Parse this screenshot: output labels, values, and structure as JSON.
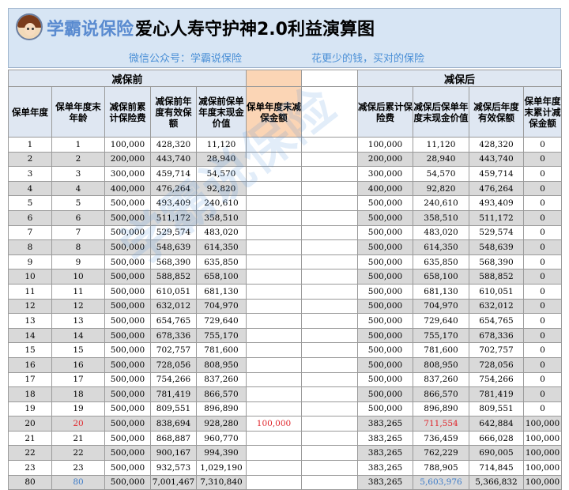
{
  "header": {
    "brand": "学霸说保险",
    "title": "爱心人寿守护神2.0利益演算图",
    "wechat": "微信公众号：学霸说保险",
    "slogan": "花更少的钱，买对的保险"
  },
  "table": {
    "group_before": "减保前",
    "group_after": "减保后",
    "columns": [
      "保单年度",
      "保单年度末年龄",
      "减保前累计保险费",
      "减保前年度有效保额",
      "减保前保单年度末现金价值",
      "保单年度末减保金额",
      "减保后累计保险费",
      "减保后保单年度末现金价值",
      "减保后年度有效保额",
      "保单年度末累计减保金额"
    ],
    "rows": [
      [
        "1",
        "1",
        "100,000",
        "428,320",
        "11,120",
        "",
        "100,000",
        "11,120",
        "428,320",
        "0"
      ],
      [
        "2",
        "2",
        "200,000",
        "443,740",
        "28,940",
        "",
        "200,000",
        "28,940",
        "443,740",
        "0"
      ],
      [
        "3",
        "3",
        "300,000",
        "459,714",
        "54,570",
        "",
        "300,000",
        "54,570",
        "459,714",
        "0"
      ],
      [
        "4",
        "4",
        "400,000",
        "476,264",
        "92,820",
        "",
        "400,000",
        "92,820",
        "476,264",
        "0"
      ],
      [
        "5",
        "5",
        "500,000",
        "493,409",
        "240,610",
        "",
        "500,000",
        "240,610",
        "493,409",
        "0"
      ],
      [
        "6",
        "6",
        "500,000",
        "511,172",
        "358,510",
        "",
        "500,000",
        "358,510",
        "511,172",
        "0"
      ],
      [
        "7",
        "7",
        "500,000",
        "529,574",
        "483,020",
        "",
        "500,000",
        "483,020",
        "529,574",
        "0"
      ],
      [
        "8",
        "8",
        "500,000",
        "548,639",
        "614,350",
        "",
        "500,000",
        "614,350",
        "548,639",
        "0"
      ],
      [
        "9",
        "9",
        "500,000",
        "568,390",
        "635,850",
        "",
        "500,000",
        "635,850",
        "568,390",
        "0"
      ],
      [
        "10",
        "10",
        "500,000",
        "588,852",
        "658,100",
        "",
        "500,000",
        "658,100",
        "588,852",
        "0"
      ],
      [
        "11",
        "11",
        "500,000",
        "610,051",
        "681,130",
        "",
        "500,000",
        "681,130",
        "610,051",
        "0"
      ],
      [
        "12",
        "12",
        "500,000",
        "632,012",
        "704,970",
        "",
        "500,000",
        "704,970",
        "632,012",
        "0"
      ],
      [
        "13",
        "13",
        "500,000",
        "654,765",
        "729,640",
        "",
        "500,000",
        "729,640",
        "654,765",
        "0"
      ],
      [
        "14",
        "14",
        "500,000",
        "678,336",
        "755,170",
        "",
        "500,000",
        "755,170",
        "678,336",
        "0"
      ],
      [
        "15",
        "15",
        "500,000",
        "702,757",
        "781,600",
        "",
        "500,000",
        "781,600",
        "702,757",
        "0"
      ],
      [
        "16",
        "16",
        "500,000",
        "728,056",
        "808,950",
        "",
        "500,000",
        "808,950",
        "728,056",
        "0"
      ],
      [
        "17",
        "17",
        "500,000",
        "754,266",
        "837,260",
        "",
        "500,000",
        "837,260",
        "754,266",
        "0"
      ],
      [
        "18",
        "18",
        "500,000",
        "781,419",
        "866,570",
        "",
        "500,000",
        "866,570",
        "781,419",
        "0"
      ],
      [
        "19",
        "19",
        "500,000",
        "809,551",
        "896,890",
        "",
        "500,000",
        "896,890",
        "809,551",
        "0"
      ],
      [
        "20",
        "20",
        "500,000",
        "838,694",
        "928,280",
        "100,000",
        "383,265",
        "711,554",
        "642,884",
        "100,000"
      ],
      [
        "21",
        "21",
        "500,000",
        "868,887",
        "960,770",
        "",
        "383,265",
        "736,459",
        "666,028",
        "100,000"
      ],
      [
        "22",
        "22",
        "500,000",
        "900,167",
        "994,390",
        "",
        "383,265",
        "762,229",
        "690,005",
        "100,000"
      ],
      [
        "23",
        "23",
        "500,000",
        "932,573",
        "1,029,190",
        "",
        "383,265",
        "788,905",
        "714,845",
        "100,000"
      ],
      [
        "80",
        "80",
        "500,000",
        "7,001,467",
        "7,310,840",
        "",
        "383,265",
        "5,603,976",
        "5,366,832",
        "100,000"
      ]
    ],
    "highlight": {
      "red_cells": [
        [
          19,
          1
        ],
        [
          19,
          5
        ],
        [
          19,
          7
        ]
      ],
      "blue_cells": [
        [
          23,
          1
        ],
        [
          23,
          7
        ]
      ]
    }
  },
  "watermark": "学霸说保险",
  "colors": {
    "header_bg": "#d7e5f4",
    "brand_blue": "#5a8bd0",
    "subtitle_blue": "#4a8fd6",
    "peach": "#fbd5b5",
    "alt_row": "#d9d9d9",
    "red": "#e0242a",
    "blue": "#3d7cc9"
  }
}
